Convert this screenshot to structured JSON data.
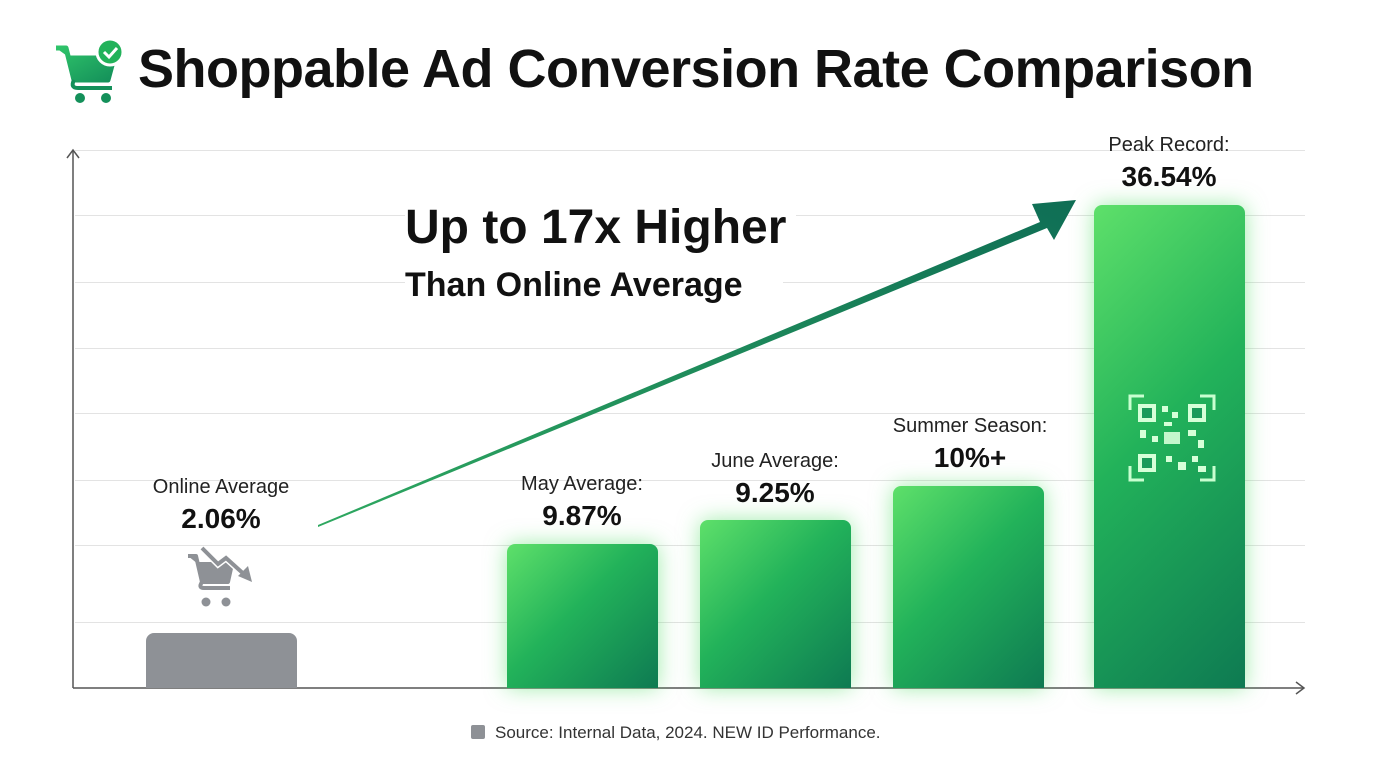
{
  "title": "Shoppable Ad Conversion Rate Comparison",
  "chart_data": {
    "type": "bar",
    "title": "Shoppable Ad Conversion Rate Comparison",
    "categories": [
      "Online Average",
      "May Average:",
      "June Average:",
      "Summer Season:",
      "Peak Record:"
    ],
    "values": [
      2.06,
      9.87,
      9.25,
      10,
      36.54
    ],
    "value_labels": [
      "2.06%",
      "9.87%",
      "9.25%",
      "10%+",
      "36.54%"
    ],
    "colors": {
      "baseline": "#8e9196",
      "accent": "#22b25a"
    },
    "annotation": {
      "headline": "Up to 17x Higher",
      "subline": "Than Online Average"
    },
    "grid": true
  },
  "source": "Source: Internal Data, 2024. NEW ID Performance."
}
